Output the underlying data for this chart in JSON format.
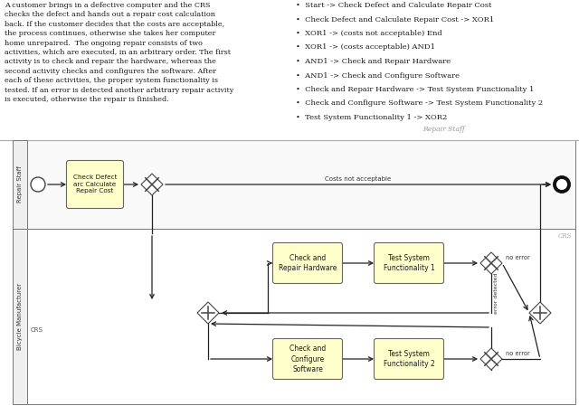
{
  "bg_color": "#ffffff",
  "task_fill": "#ffffcc",
  "description_left": "A customer brings in a defective computer and the CRS\nchecks the defect and hands out a repair cost calculation\nback. If the customer decides that the costs are acceptable,\nthe process continues, otherwise she takes her computer\nhome unrepaired.  The ongoing repair consists of two\nactivities, which are executed, in an arbitrary order. The first\nactivity is to check and repair the hardware, whereas the\nsecond activity checks and configures the software. After\neach of these activities, the proper system functionality is\ntested. If an error is detected another arbitrary repair activity\nis executed, otherwise the repair is finished.",
  "bullets": [
    "Start -> Check Defect and Calculate Repair Cost",
    "Check Defect and Calculate Repair Cost -> XOR1",
    "XOR1 -> (costs not acceptable) End",
    "XOR1 -> (costs acceptable) AND1",
    "AND1 -> Check and Repair Hardware",
    "AND1 -> Check and Configure Software",
    "Check and Repair Hardware -> Test System Functionality 1",
    "Check and Configure Software -> Test System Functionality 2",
    "Test System Functionality 1 -> XOR2"
  ],
  "repair_staff_label": "Repair Staff",
  "bicycle_label": "Bicycle Manufacturer",
  "crs_label": "CRS",
  "repair_staff_small": "Repair Staff",
  "crs_small": "CRS",
  "costs_not_acceptable": "Costs not acceptable",
  "no_error": "no error",
  "error_detected": "error detected",
  "task1_label": "Check Defect\narc Calculate\nRepair Cost",
  "hw_label": "Check and\nRepair Hardware",
  "tsf1_label": "Test System\nFunctionality 1",
  "sw_label": "Check and\nConfigure\nSoftware",
  "tsf2_label": "Test System\nFunctionality 2"
}
